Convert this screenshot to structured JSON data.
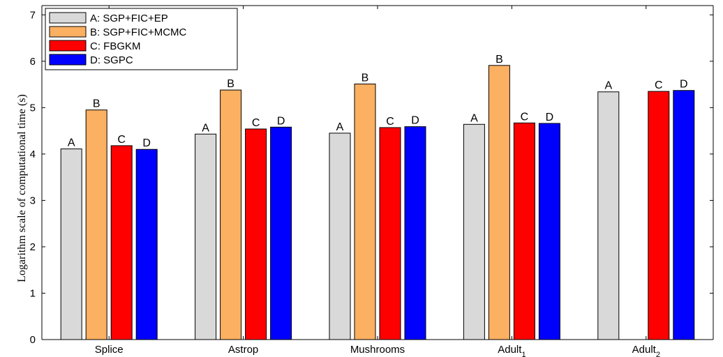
{
  "chart_data": {
    "type": "bar",
    "categories": [
      "Splice",
      "Astrop",
      "Mushrooms",
      "Adult",
      "Adult"
    ],
    "category_subscripts": [
      "",
      "",
      "",
      "1",
      "2"
    ],
    "series": [
      {
        "name": "A: SGP+FIC+EP",
        "bar_label": "A",
        "color": "#d9d9d9",
        "values": [
          4.11,
          4.43,
          4.45,
          4.64,
          5.34
        ]
      },
      {
        "name": "B: SGP+FIC+MCMC",
        "bar_label": "B",
        "color": "#fcb061",
        "values": [
          4.95,
          5.38,
          5.51,
          5.91,
          null
        ]
      },
      {
        "name": "C: FBGKM",
        "bar_label": "C",
        "color": "#ff0000",
        "values": [
          4.18,
          4.54,
          4.57,
          4.67,
          5.35
        ]
      },
      {
        "name": "D: SGPC",
        "bar_label": "D",
        "color": "#0000ff",
        "values": [
          4.1,
          4.58,
          4.59,
          4.66,
          5.37
        ]
      }
    ],
    "ylabel": "Logarithm scale of computational time (s)",
    "ylim": [
      0,
      7.2
    ],
    "yticks": [
      0,
      1,
      2,
      3,
      4,
      5,
      6,
      7
    ],
    "grid": false,
    "legend_position": "top-left"
  }
}
